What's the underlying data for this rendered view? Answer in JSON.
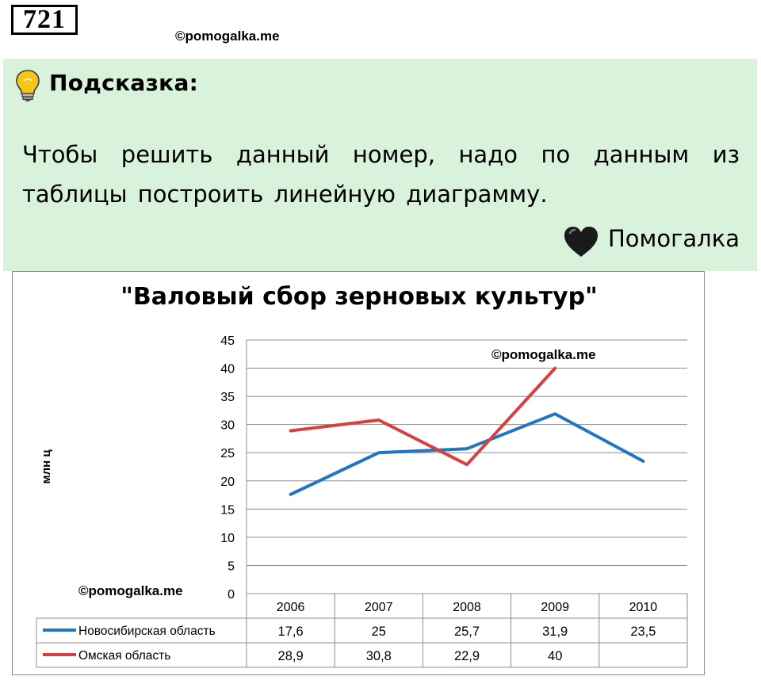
{
  "problem": {
    "number": "721"
  },
  "watermark": "©pomogalka.me",
  "hint": {
    "title": "Подсказка:",
    "text": "Чтобы решить данный номер, надо по данным из таблицы построить линейную диаграмму.",
    "brand": "Помогалка",
    "icons": [
      "lightbulb-icon",
      "heart-icon"
    ]
  },
  "chart_data": {
    "type": "line",
    "title": "\"Валовый сбор зерновых культур\"",
    "ylabel": "млн ц",
    "xlabel": "",
    "ylim": [
      0,
      45
    ],
    "yticks": [
      "0",
      "5",
      "10",
      "15",
      "20",
      "25",
      "30",
      "35",
      "40",
      "45"
    ],
    "grid": true,
    "legend": "data-table",
    "categories": [
      "2006",
      "2007",
      "2008",
      "2009",
      "2010"
    ],
    "series": [
      {
        "name": "Новосибирская область",
        "color": "#2176c1",
        "values": [
          17.6,
          25,
          25.7,
          31.9,
          23.5
        ],
        "labels": [
          "17,6",
          "25",
          "25,7",
          "31,9",
          "23,5"
        ]
      },
      {
        "name": "Омская область",
        "color": "#d84040",
        "values": [
          28.9,
          30.8,
          22.9,
          40,
          null
        ],
        "labels": [
          "28,9",
          "30,8",
          "22,9",
          "40",
          ""
        ]
      }
    ]
  }
}
